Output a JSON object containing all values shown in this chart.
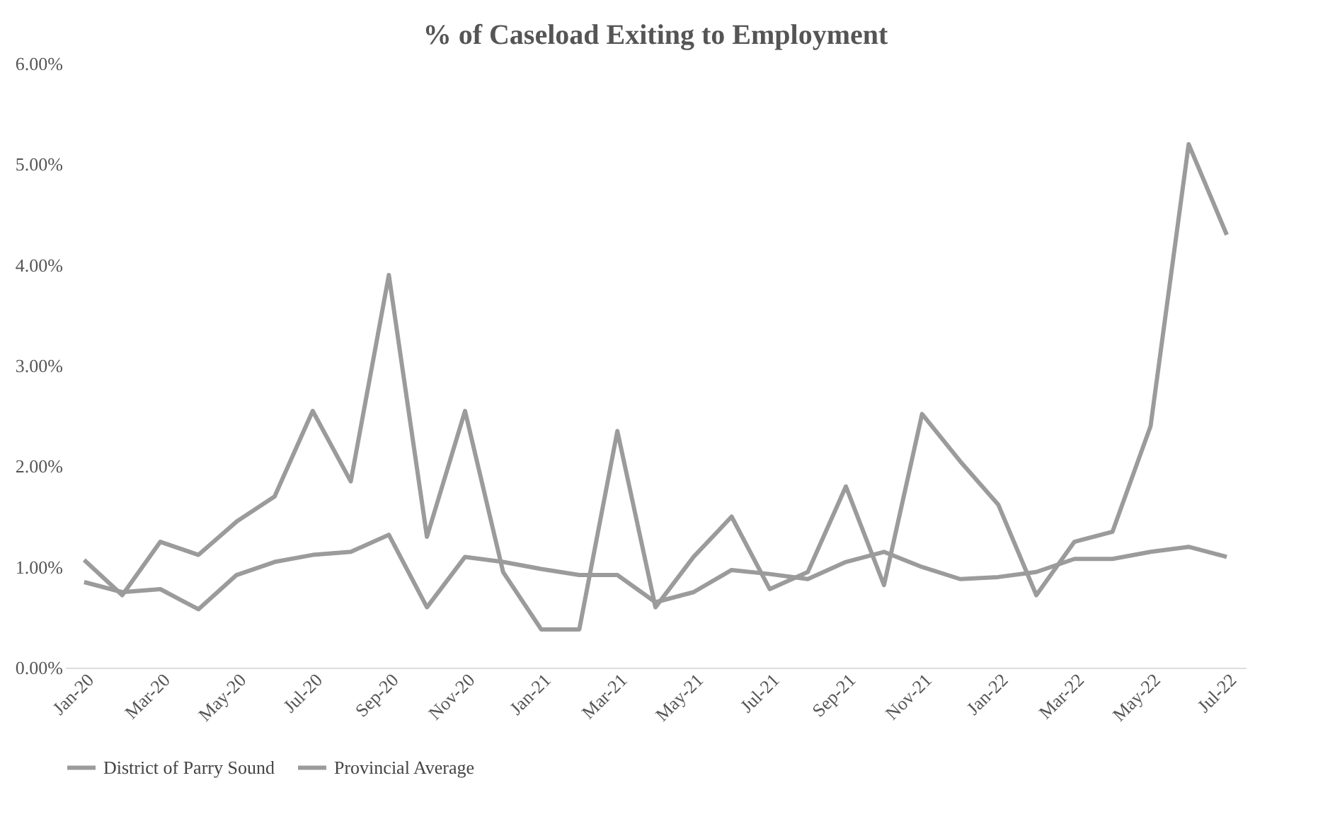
{
  "chart_data": {
    "type": "line",
    "title": "% of Caseload Exiting to Employment",
    "categories": [
      "Jan-20",
      null,
      "Mar-20",
      null,
      "May-20",
      null,
      "Jul-20",
      null,
      "Sep-20",
      null,
      "Nov-20",
      null,
      "Jan-21",
      null,
      "Mar-21",
      null,
      "May-21",
      null,
      "Jul-21",
      null,
      "Sep-21",
      null,
      "Nov-21",
      null,
      "Jan-22",
      null,
      "Mar-22",
      null,
      "May-22",
      null,
      "Jul-22"
    ],
    "series": [
      {
        "name": "District of Parry Sound",
        "color": "#9b9b9b",
        "values": [
          1.07,
          0.72,
          1.25,
          1.12,
          1.45,
          1.7,
          2.55,
          1.85,
          3.9,
          1.3,
          2.55,
          0.95,
          0.38,
          0.38,
          2.35,
          0.6,
          1.1,
          1.5,
          0.78,
          0.95,
          1.8,
          0.82,
          2.52,
          2.05,
          1.62,
          0.72,
          1.25,
          1.35,
          2.4,
          5.2,
          4.3
        ]
      },
      {
        "name": "Provincial Average",
        "color": "#9b9b9b",
        "values": [
          0.85,
          0.75,
          0.78,
          0.58,
          0.92,
          1.05,
          1.12,
          1.15,
          1.32,
          0.6,
          1.1,
          1.05,
          0.98,
          0.92,
          0.92,
          0.65,
          0.75,
          0.97,
          0.93,
          0.88,
          1.05,
          1.15,
          1.0,
          0.88,
          0.9,
          0.95,
          1.08,
          1.08,
          1.15,
          1.2,
          1.1
        ]
      }
    ],
    "ylim": [
      0,
      6
    ],
    "yticks": [
      {
        "value": 0,
        "label": "0.00%"
      },
      {
        "value": 1,
        "label": "1.00%"
      },
      {
        "value": 2,
        "label": "2.00%"
      },
      {
        "value": 3,
        "label": "3.00%"
      },
      {
        "value": 4,
        "label": "4.00%"
      },
      {
        "value": 5,
        "label": "5.00%"
      },
      {
        "value": 6,
        "label": "6.00%"
      }
    ],
    "grid": false,
    "legend": "bottom",
    "marker": "none",
    "line_style": "solid"
  }
}
